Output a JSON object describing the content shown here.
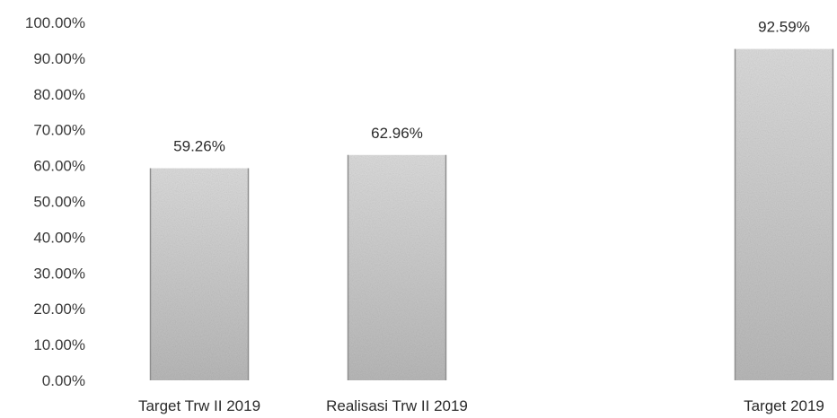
{
  "chart_data": {
    "type": "bar",
    "categories": [
      "Target Trw II 2019",
      "Realisasi Trw II 2019",
      "",
      "Target 2019"
    ],
    "values": [
      59.26,
      62.96,
      null,
      92.59
    ],
    "data_labels": [
      "59.26%",
      "62.96%",
      "",
      "92.59%"
    ],
    "ylim": [
      0,
      100
    ],
    "y_ticks": [
      "0.00%",
      "10.00%",
      "20.00%",
      "30.00%",
      "40.00%",
      "50.00%",
      "60.00%",
      "70.00%",
      "80.00%",
      "90.00%",
      "100.00%"
    ],
    "grid": false,
    "legend": "none",
    "bar_color": "#c8c8c8"
  }
}
